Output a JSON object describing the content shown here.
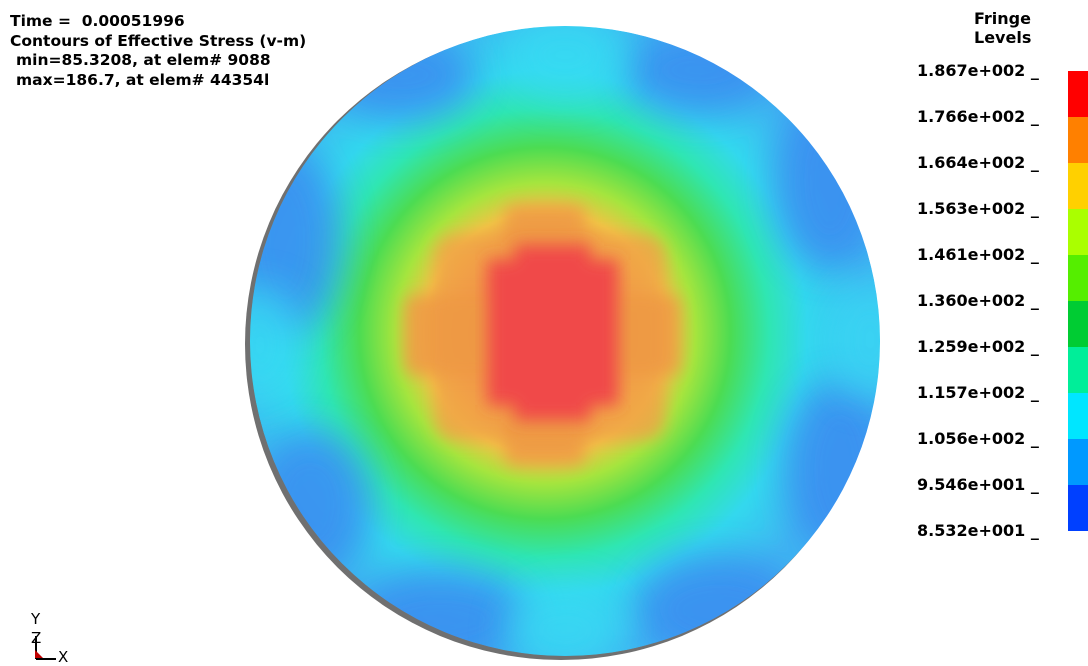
{
  "header": {
    "time": "Time =  0.00051996",
    "title": "Contours of Effective Stress (v-m)",
    "min": "min=85.3208, at elem# 9088",
    "max": "max=186.7, at elem# 44354l"
  },
  "legend": {
    "title": "Fringe Levels",
    "levels": [
      "1.867e+002 _",
      "1.766e+002 _",
      "1.664e+002 _",
      "1.563e+002 _",
      "1.461e+002 _",
      "1.360e+002 _",
      "1.259e+002 _",
      "1.157e+002 _",
      "1.056e+002 _",
      "9.546e+001 _",
      "8.532e+001 _"
    ],
    "colors": [
      "#ff0000",
      "#ff8000",
      "#ffd000",
      "#aaff00",
      "#55ee00",
      "#00cc33",
      "#00ee99",
      "#00e6ff",
      "#0099ff",
      "#0040ff"
    ]
  },
  "axes": {
    "y": "Y",
    "z": "Z",
    "x": "X"
  }
}
